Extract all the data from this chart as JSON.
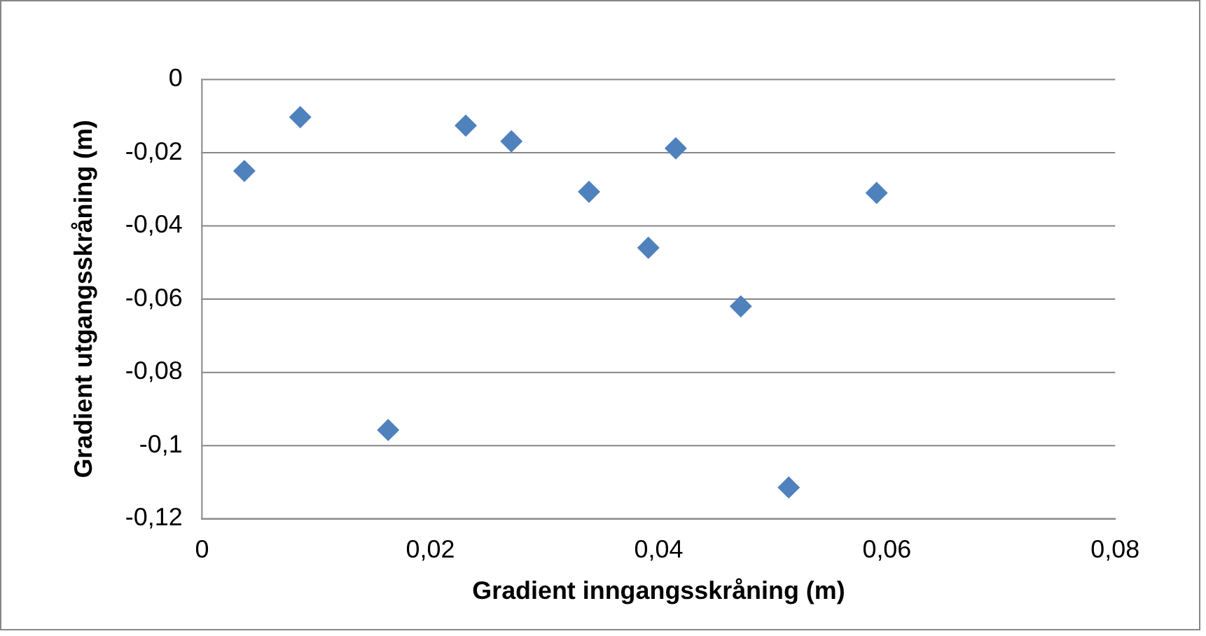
{
  "chart_data": {
    "type": "scatter",
    "xlabel": "Gradient inngangsskråning (m)",
    "ylabel": "Gradient utgangsskråning (m)",
    "x": [
      0.0037,
      0.0086,
      0.0163,
      0.0231,
      0.0271,
      0.0339,
      0.0391,
      0.0415,
      0.0472,
      0.0514,
      0.0591
    ],
    "series": [
      {
        "color": "#4f81bd",
        "values": [
          -0.025,
          -0.0103,
          -0.0958,
          -0.0126,
          -0.0169,
          -0.0307,
          -0.046,
          -0.0188,
          -0.062,
          -0.1115,
          -0.031
        ]
      }
    ],
    "xlim": [
      0,
      0.08
    ],
    "xticks": [
      0,
      {
        "value": 0.02,
        "label": "0,02"
      },
      {
        "value": 0.04,
        "label": "0,04"
      },
      {
        "value": 0.06,
        "label": "0,06"
      },
      {
        "value": 0.08,
        "label": "0,08"
      }
    ],
    "ylim": [
      -0.12,
      0
    ],
    "yticks": [
      0,
      {
        "value": -0.02,
        "label": "-0,02"
      },
      {
        "value": -0.04,
        "label": "-0,04"
      },
      {
        "value": -0.06,
        "label": "-0,06"
      },
      {
        "value": -0.08,
        "label": "-0,08"
      },
      {
        "value": -0.1,
        "label": "-0,1"
      },
      {
        "value": -0.12,
        "label": "-0,12"
      }
    ],
    "grid": "y",
    "legend": false,
    "marker": "diamond"
  }
}
